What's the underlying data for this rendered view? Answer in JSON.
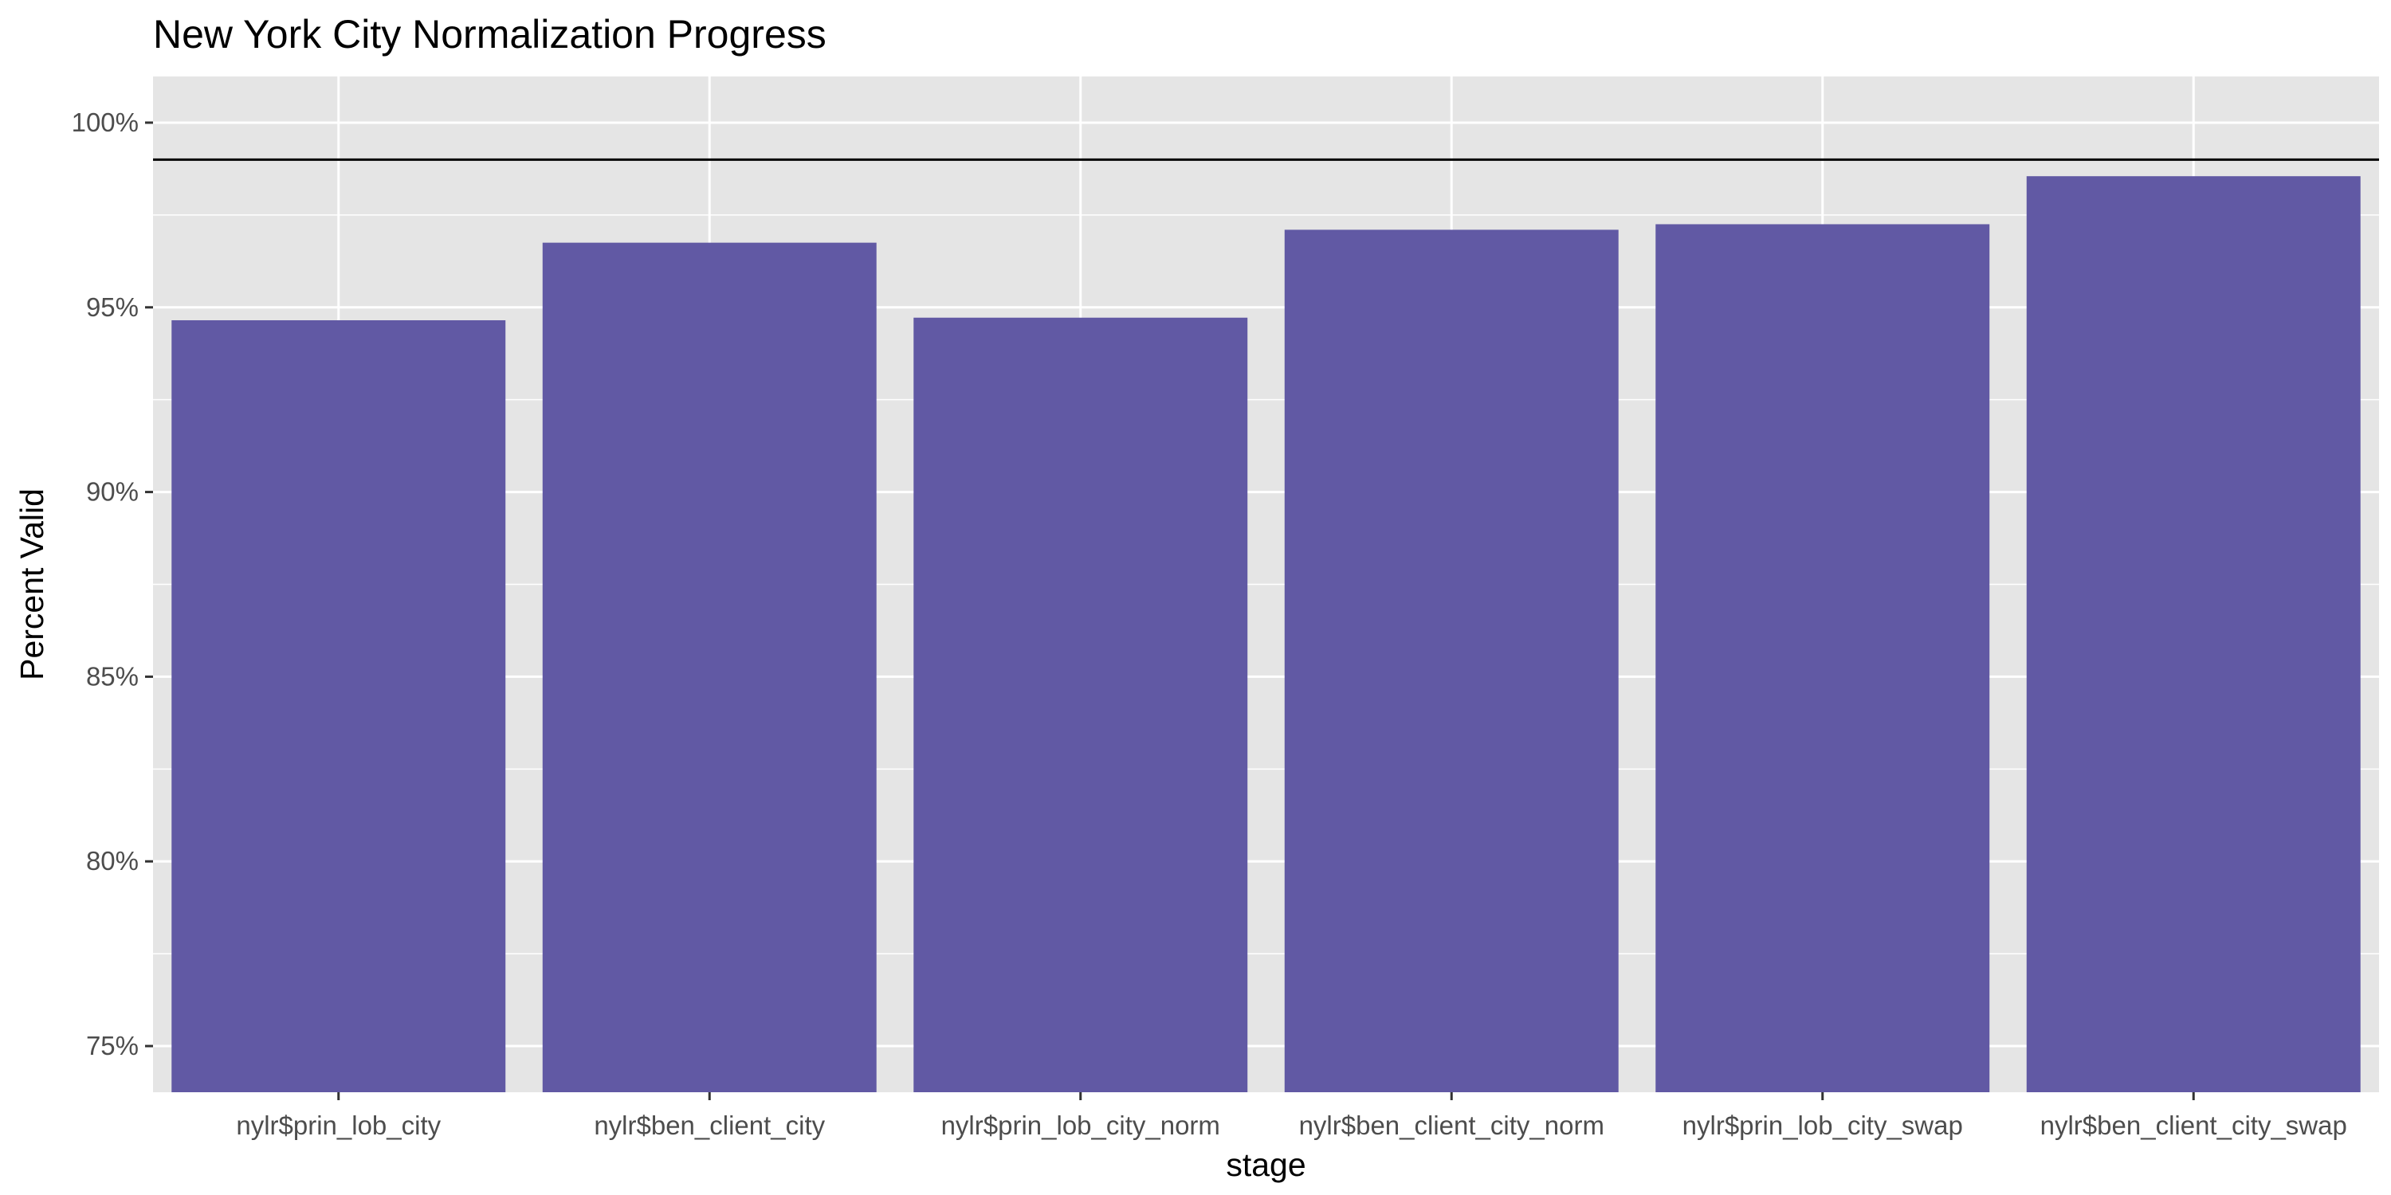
{
  "chart_data": {
    "type": "bar",
    "title": "New York City Normalization Progress",
    "xlabel": "stage",
    "ylabel": "Percent Valid",
    "categories": [
      "nylr$prin_lob_city",
      "nylr$ben_client_city",
      "nylr$prin_lob_city_norm",
      "nylr$ben_client_city_norm",
      "nylr$prin_lob_city_swap",
      "nylr$ben_client_city_swap"
    ],
    "values": [
      0.9465,
      0.9675,
      0.9472,
      0.971,
      0.9725,
      0.9855
    ],
    "ylim": [
      0.7375,
      1.0125
    ],
    "yticks": [
      0.75,
      0.8,
      0.85,
      0.9,
      0.95,
      1.0
    ],
    "ytick_labels": [
      "75%",
      "80%",
      "85%",
      "90%",
      "95%",
      "100%"
    ],
    "reference_line": 0.99,
    "grid": true,
    "legend": "none",
    "colors": {
      "bar": "#6159A4",
      "panel_background": "#E5E5E5",
      "grid": "#FFFFFF",
      "reference_line": "#000000"
    }
  }
}
